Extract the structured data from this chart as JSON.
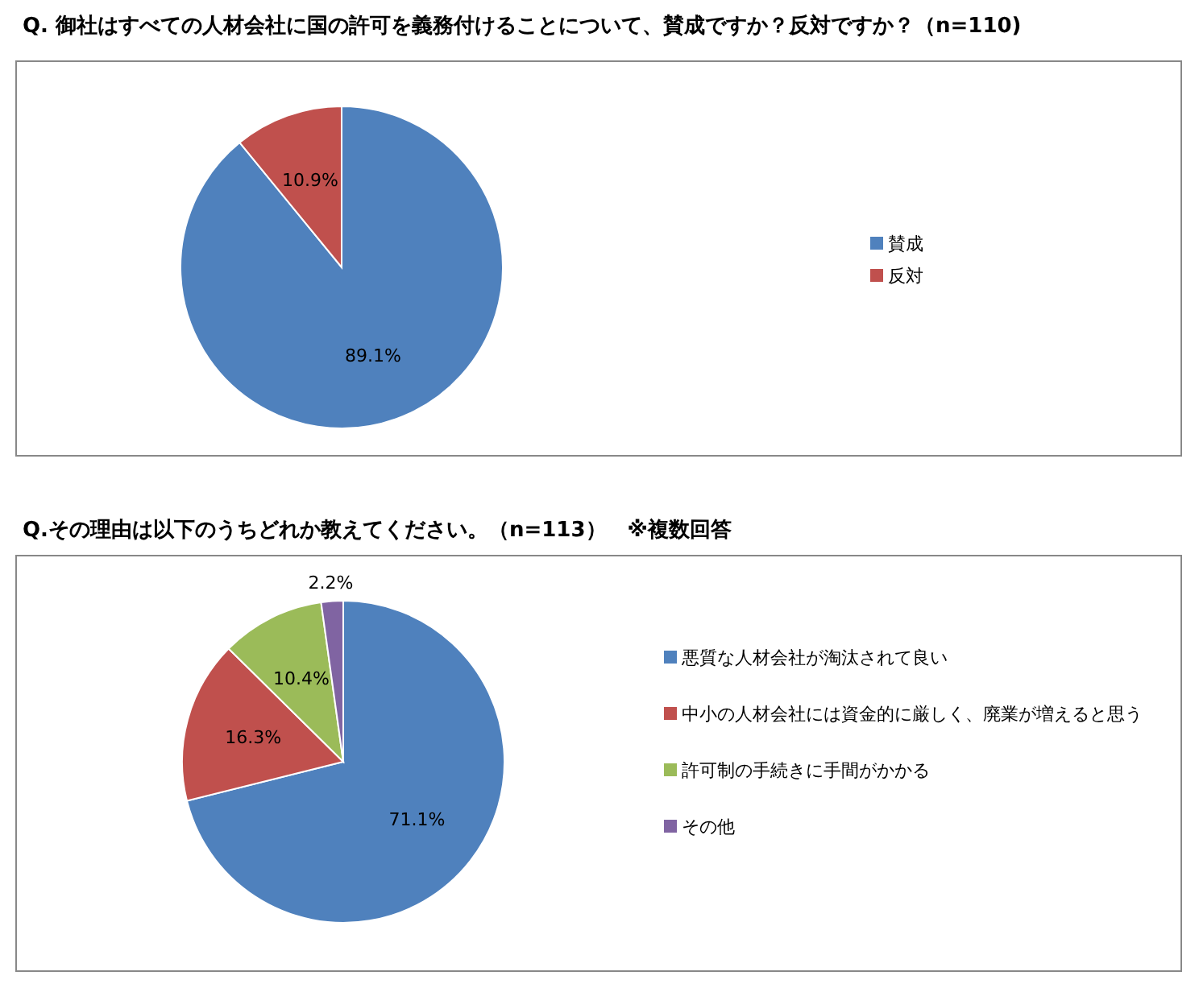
{
  "chart_data": [
    {
      "type": "pie",
      "title": "Q. 御社はすべての人材会社に国の許可を義務付けることについて、賛成ですか？反対ですか？（n=110)",
      "categories": [
        "賛成",
        "反対"
      ],
      "values": [
        89.1,
        10.9
      ],
      "colors": [
        "#4f81bd",
        "#c0504d"
      ],
      "value_labels": [
        "89.1%",
        "10.9%"
      ],
      "legend": "right"
    },
    {
      "type": "pie",
      "title": "Q.その理由は以下のうちどれか教えてください。（n=113）　※複数回答",
      "categories": [
        "悪質な人材会社が淘汰されて良い",
        "中小の人材会社には資金的に厳しく、廃業が増えると思う",
        "許可制の手続きに手間がかかる",
        "その他"
      ],
      "values": [
        71.1,
        16.3,
        10.4,
        2.2
      ],
      "colors": [
        "#4f81bd",
        "#c0504d",
        "#9bbb59",
        "#8064a2"
      ],
      "value_labels": [
        "71.1%",
        "16.3%",
        "10.4%",
        "2.2%"
      ],
      "legend": "right"
    }
  ]
}
